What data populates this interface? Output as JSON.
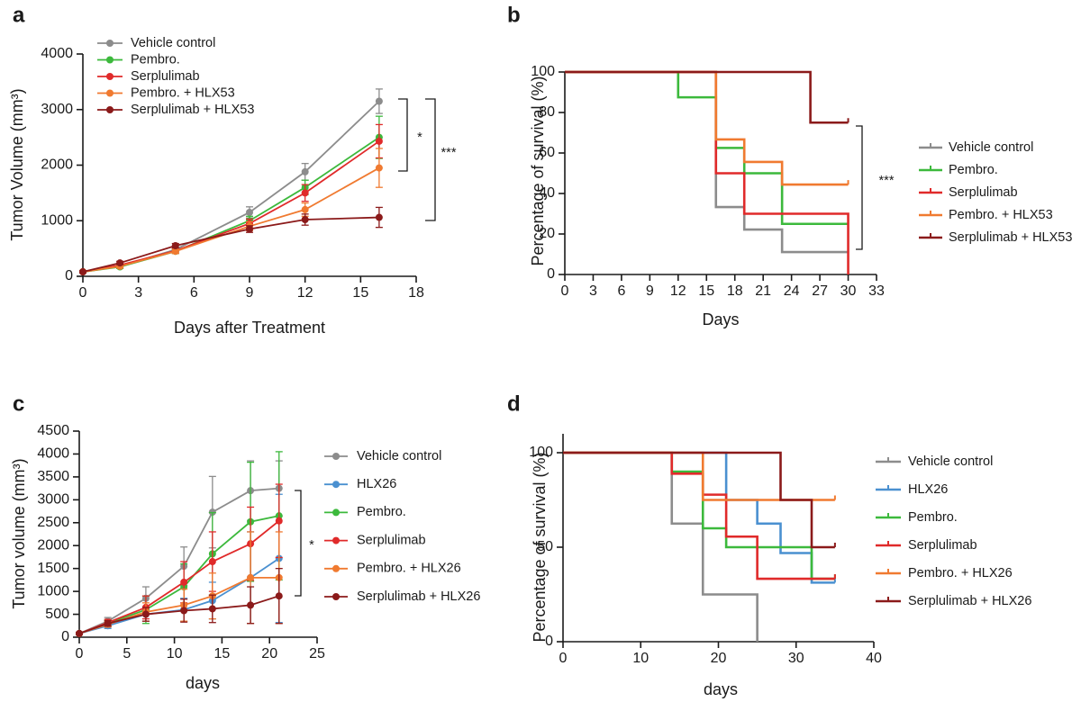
{
  "chart_data": [
    {
      "type": "line",
      "panel_label": "a",
      "xlabel": "Days after Treatment",
      "ylabel": "Tumor Volume (mm³)",
      "xlim": [
        0,
        18
      ],
      "xticks": [
        0,
        3,
        6,
        9,
        12,
        15,
        18
      ],
      "ylim": [
        0,
        4000
      ],
      "yticks": [
        0,
        1000,
        2000,
        3000,
        4000
      ],
      "x": [
        0,
        2,
        5,
        9,
        12,
        16
      ],
      "series": [
        {
          "name": "Vehicle control",
          "color": "#8c8c8c",
          "values": [
            80,
            180,
            480,
            1150,
            1880,
            3150
          ],
          "errors": [
            20,
            30,
            40,
            100,
            150,
            220
          ]
        },
        {
          "name": "Pembro.",
          "color": "#3cb93c",
          "values": [
            80,
            170,
            450,
            1000,
            1600,
            2500
          ],
          "errors": [
            20,
            30,
            40,
            80,
            130,
            380
          ]
        },
        {
          "name": "Serplulimab",
          "color": "#e02a2a",
          "values": [
            80,
            200,
            460,
            950,
            1500,
            2430
          ],
          "errors": [
            20,
            30,
            40,
            80,
            150,
            300
          ]
        },
        {
          "name": "Pembro. + HLX53",
          "color": "#f07a30",
          "values": [
            80,
            180,
            450,
            900,
            1200,
            1950
          ],
          "errors": [
            20,
            30,
            40,
            80,
            120,
            350
          ]
        },
        {
          "name": "Serplulimab + HLX53",
          "color": "#8b1a1a",
          "values": [
            80,
            240,
            550,
            850,
            1020,
            1060
          ],
          "errors": [
            20,
            30,
            40,
            60,
            100,
            180
          ]
        }
      ],
      "annotations": [
        "*",
        "***"
      ]
    },
    {
      "type": "step",
      "panel_label": "b",
      "xlabel": "Days",
      "ylabel": "Percentage of survival (%)",
      "xlim": [
        0,
        33
      ],
      "xticks": [
        0,
        3,
        6,
        9,
        12,
        15,
        18,
        21,
        24,
        27,
        30,
        33
      ],
      "ylim": [
        0,
        100
      ],
      "yticks": [
        0,
        20,
        40,
        60,
        80,
        100
      ],
      "series": [
        {
          "name": "Vehicle control",
          "color": "#8c8c8c",
          "x": [
            0,
            16,
            19,
            23,
            30
          ],
          "values": [
            100,
            33.3,
            22.2,
            11.1,
            11.1
          ]
        },
        {
          "name": "Pembro.",
          "color": "#3cb93c",
          "x": [
            0,
            12,
            16,
            19,
            23,
            30
          ],
          "values": [
            100,
            87.5,
            62.5,
            50,
            25,
            25
          ]
        },
        {
          "name": "Serplulimab",
          "color": "#e02a2a",
          "x": [
            0,
            16,
            19,
            30
          ],
          "values": [
            100,
            50,
            30,
            0
          ]
        },
        {
          "name": "Pembro. + HLX53",
          "color": "#f07a30",
          "x": [
            0,
            16,
            19,
            23,
            30
          ],
          "values": [
            100,
            66.7,
            55.6,
            44.4,
            44.4
          ]
        },
        {
          "name": "Serplulimab + HLX53",
          "color": "#8b1a1a",
          "x": [
            0,
            26,
            30
          ],
          "values": [
            100,
            75,
            75
          ]
        }
      ],
      "annotations": [
        "***"
      ]
    },
    {
      "type": "line",
      "panel_label": "c",
      "xlabel": "days",
      "ylabel": "Tumor volume (mm³)",
      "xlim": [
        0,
        25
      ],
      "xticks": [
        0,
        5,
        10,
        15,
        20,
        25
      ],
      "ylim": [
        0,
        4500
      ],
      "yticks": [
        0,
        500,
        1000,
        1500,
        2000,
        2500,
        3000,
        3500,
        4000,
        4500
      ],
      "x": [
        0,
        3,
        7,
        11,
        14,
        18,
        21
      ],
      "series": [
        {
          "name": "Vehicle control",
          "color": "#8c8c8c",
          "values": [
            80,
            350,
            850,
            1550,
            2730,
            3200,
            3250
          ],
          "errors": [
            20,
            80,
            250,
            420,
            780,
            650,
            600
          ]
        },
        {
          "name": "HLX26",
          "color": "#4a90d0",
          "values": [
            80,
            250,
            500,
            600,
            800,
            1300,
            1720
          ],
          "errors": [
            20,
            60,
            150,
            250,
            400,
            1000,
            1400
          ]
        },
        {
          "name": "Pembro.",
          "color": "#3cb93c",
          "values": [
            80,
            300,
            600,
            1100,
            1820,
            2520,
            2650
          ],
          "errors": [
            20,
            70,
            300,
            500,
            900,
            1300,
            1400
          ]
        },
        {
          "name": "Serplulimab",
          "color": "#e02a2a",
          "values": [
            80,
            320,
            650,
            1200,
            1650,
            2040,
            2540
          ],
          "errors": [
            20,
            70,
            250,
            450,
            650,
            800,
            800
          ]
        },
        {
          "name": "Pembro. + HLX26",
          "color": "#f07a30",
          "values": [
            80,
            280,
            550,
            700,
            900,
            1300,
            1300
          ],
          "errors": [
            20,
            60,
            200,
            350,
            500,
            1000,
            1000
          ]
        },
        {
          "name": "Serplulimab  + HLX26",
          "color": "#8b1a1a",
          "values": [
            80,
            300,
            500,
            580,
            620,
            700,
            900
          ],
          "errors": [
            20,
            60,
            150,
            250,
            300,
            400,
            600
          ]
        }
      ],
      "annotations": [
        "*"
      ]
    },
    {
      "type": "step",
      "panel_label": "d",
      "xlabel": "days",
      "ylabel": "Percentage of survival (%)",
      "xlim": [
        0,
        40
      ],
      "xticks": [
        0,
        10,
        20,
        30,
        40
      ],
      "ylim": [
        0,
        110
      ],
      "yticks": [
        0,
        50,
        100
      ],
      "series": [
        {
          "name": "Vehicle control",
          "color": "#8c8c8c",
          "x": [
            0,
            14,
            18,
            25
          ],
          "values": [
            100,
            62.5,
            25,
            0
          ]
        },
        {
          "name": "HLX26",
          "color": "#4a90d0",
          "x": [
            0,
            21,
            25,
            28,
            32,
            35
          ],
          "values": [
            100,
            75,
            62.5,
            46.9,
            31.25,
            31.25
          ]
        },
        {
          "name": "Pembro.",
          "color": "#3cb93c",
          "x": [
            0,
            14,
            18,
            21,
            32,
            35
          ],
          "values": [
            100,
            90,
            60,
            50,
            33.3,
            33.3
          ]
        },
        {
          "name": "Serplulimab",
          "color": "#e02a2a",
          "x": [
            0,
            14,
            18,
            21,
            25,
            35
          ],
          "values": [
            100,
            88.9,
            77.8,
            55.6,
            33.3,
            33.3
          ]
        },
        {
          "name": "Pembro. + HLX26",
          "color": "#f07a30",
          "x": [
            0,
            18,
            35
          ],
          "values": [
            100,
            75,
            75
          ]
        },
        {
          "name": "Serplulimab + HLX26",
          "color": "#8b1a1a",
          "x": [
            0,
            28,
            32,
            35
          ],
          "values": [
            100,
            75,
            50,
            50
          ]
        }
      ]
    }
  ]
}
